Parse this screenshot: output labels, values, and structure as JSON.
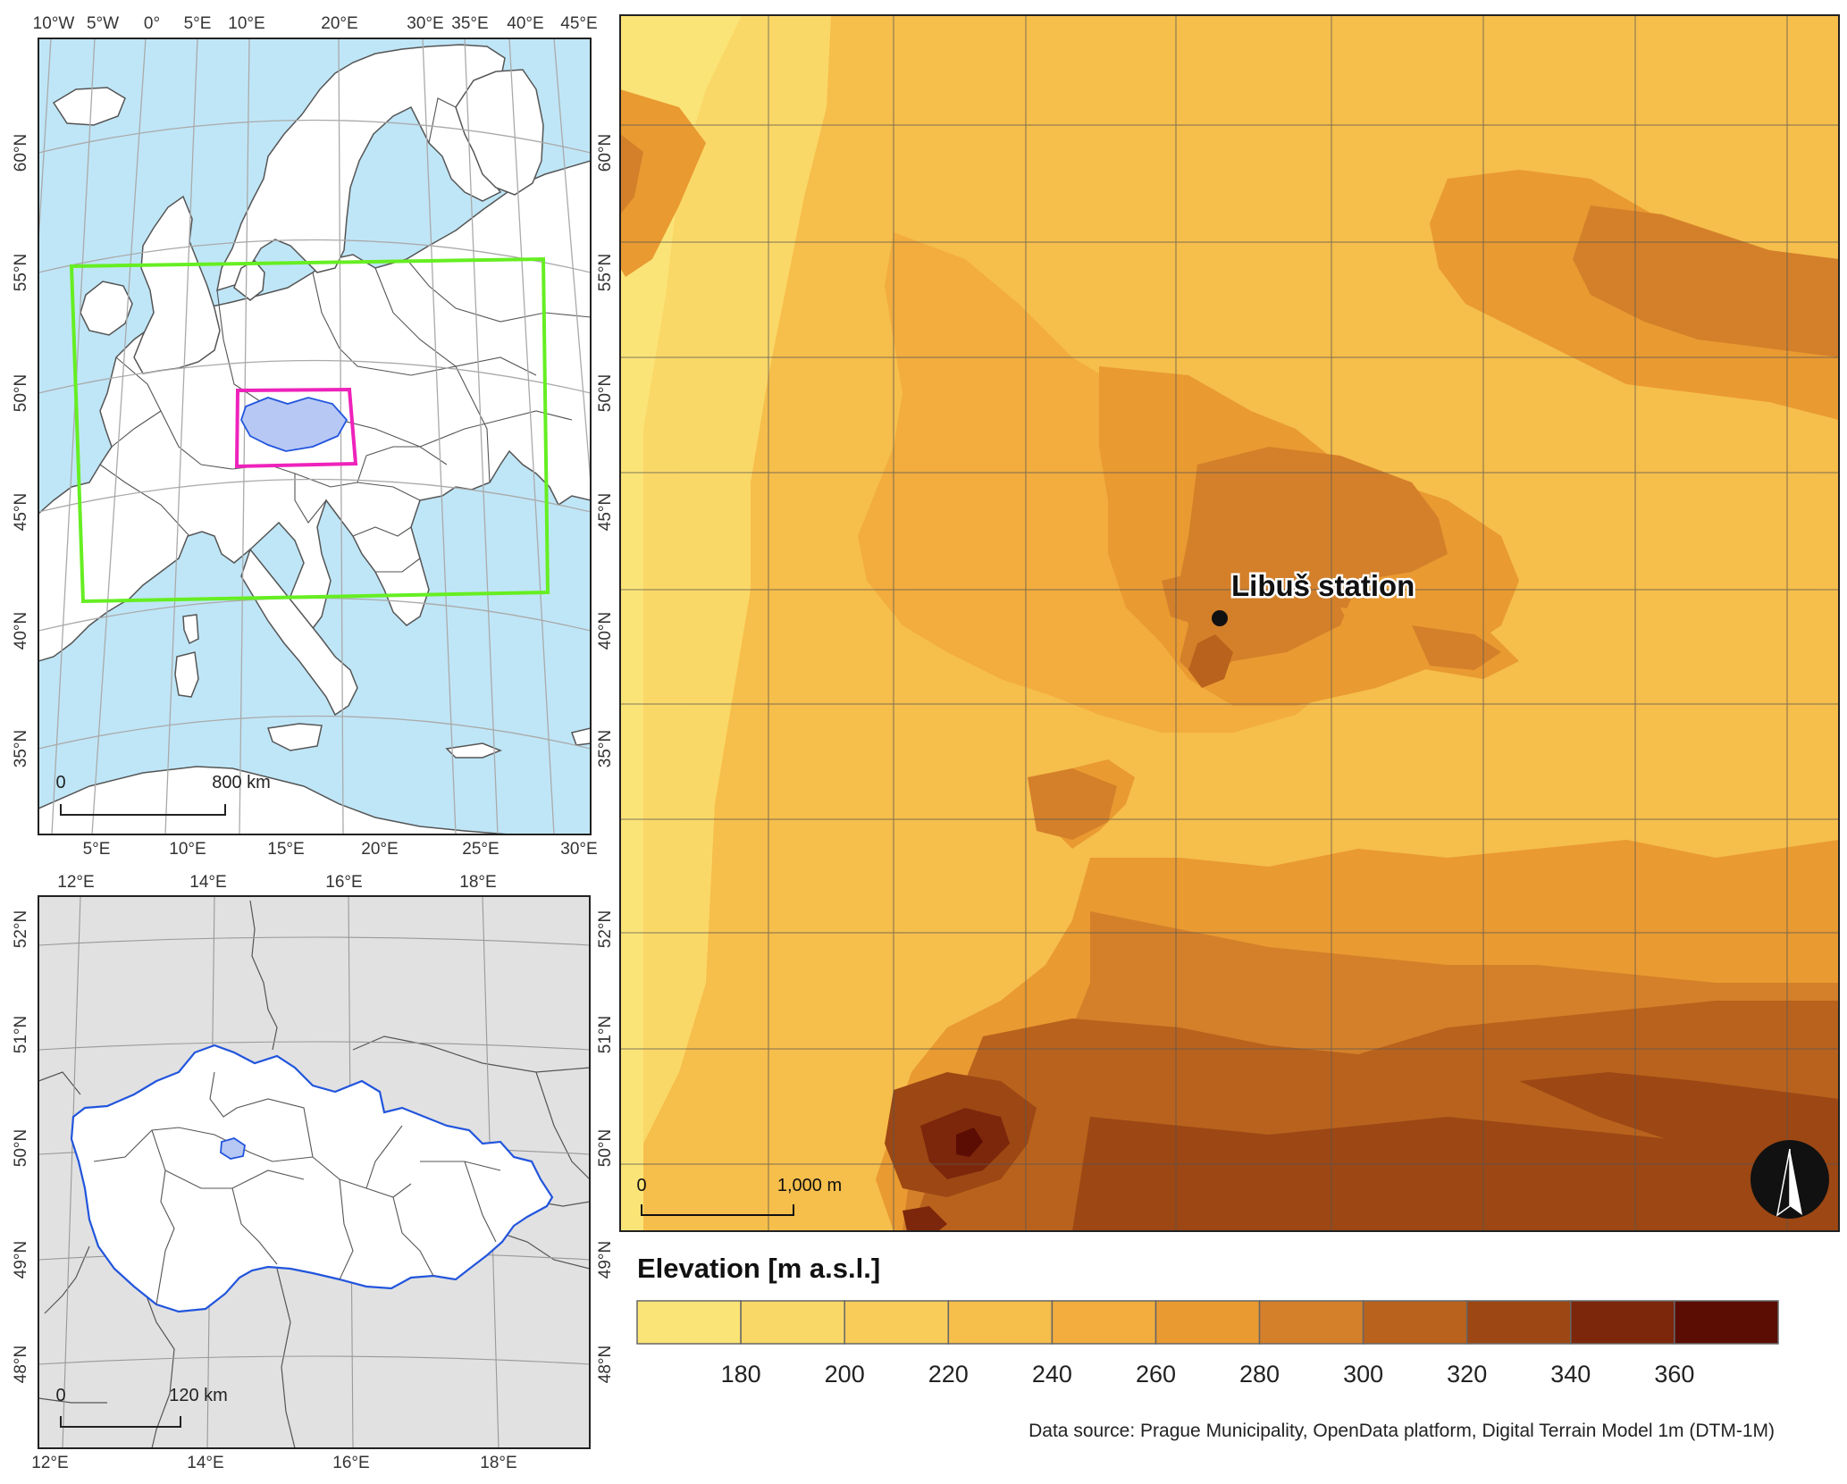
{
  "europe_map": {
    "top_labels": [
      "10°W",
      "5°W",
      "0°",
      "5°E",
      "10°E",
      "20°E",
      "30°E",
      "35°E",
      "40°E",
      "45°E"
    ],
    "bottom_labels": [
      "5°E",
      "10°E",
      "15°E",
      "20°E",
      "25°E",
      "30°E"
    ],
    "left_labels": [
      "60°N",
      "55°N",
      "50°N",
      "45°N",
      "40°N",
      "35°N"
    ],
    "right_labels": [
      "60°N",
      "55°N",
      "50°N",
      "45°N",
      "40°N",
      "35°N"
    ],
    "scale_zero": "0",
    "scale_label": "800 km",
    "colors": {
      "sea": "#bfe6f7",
      "land": "#ffffff",
      "coast": "#555555",
      "extent_box": "#66ee22",
      "cz_box": "#ee22bb",
      "cz_fill": "#b7c8f5"
    }
  },
  "cz_map": {
    "top_labels": [
      "12°E",
      "14°E",
      "16°E",
      "18°E"
    ],
    "bottom_labels": [
      "12°E",
      "14°E",
      "16°E",
      "18°E"
    ],
    "left_labels": [
      "52°N",
      "51°N",
      "50°N",
      "49°N",
      "48°N"
    ],
    "right_labels": [
      "52°N",
      "51°N",
      "50°N",
      "49°N",
      "48°N"
    ],
    "scale_zero": "0",
    "scale_label": "120 km",
    "colors": {
      "background": "#e1e1e1",
      "country": "#ffffff",
      "border": "#2255dd",
      "prague": "#b7c8f5"
    }
  },
  "elevation_map": {
    "station_label": "Libuš station",
    "scale_zero": "0",
    "scale_label": "1,000 m",
    "north_arrow_icon": "north-arrow-icon"
  },
  "legend": {
    "title": "Elevation [m a.s.l.]",
    "ticks": [
      "180",
      "200",
      "220",
      "240",
      "260",
      "280",
      "300",
      "320",
      "340",
      "360"
    ],
    "colors": [
      "#fbe477",
      "#fad868",
      "#f9cc5a",
      "#f6be4b",
      "#f2ad3e",
      "#e99a31",
      "#d4802a",
      "#b9621d",
      "#9c4714",
      "#7c270b",
      "#5b0d04"
    ]
  },
  "source_note": "Data source: Prague Municipality, OpenData platform, Digital Terrain Model 1m (DTM-1M)"
}
